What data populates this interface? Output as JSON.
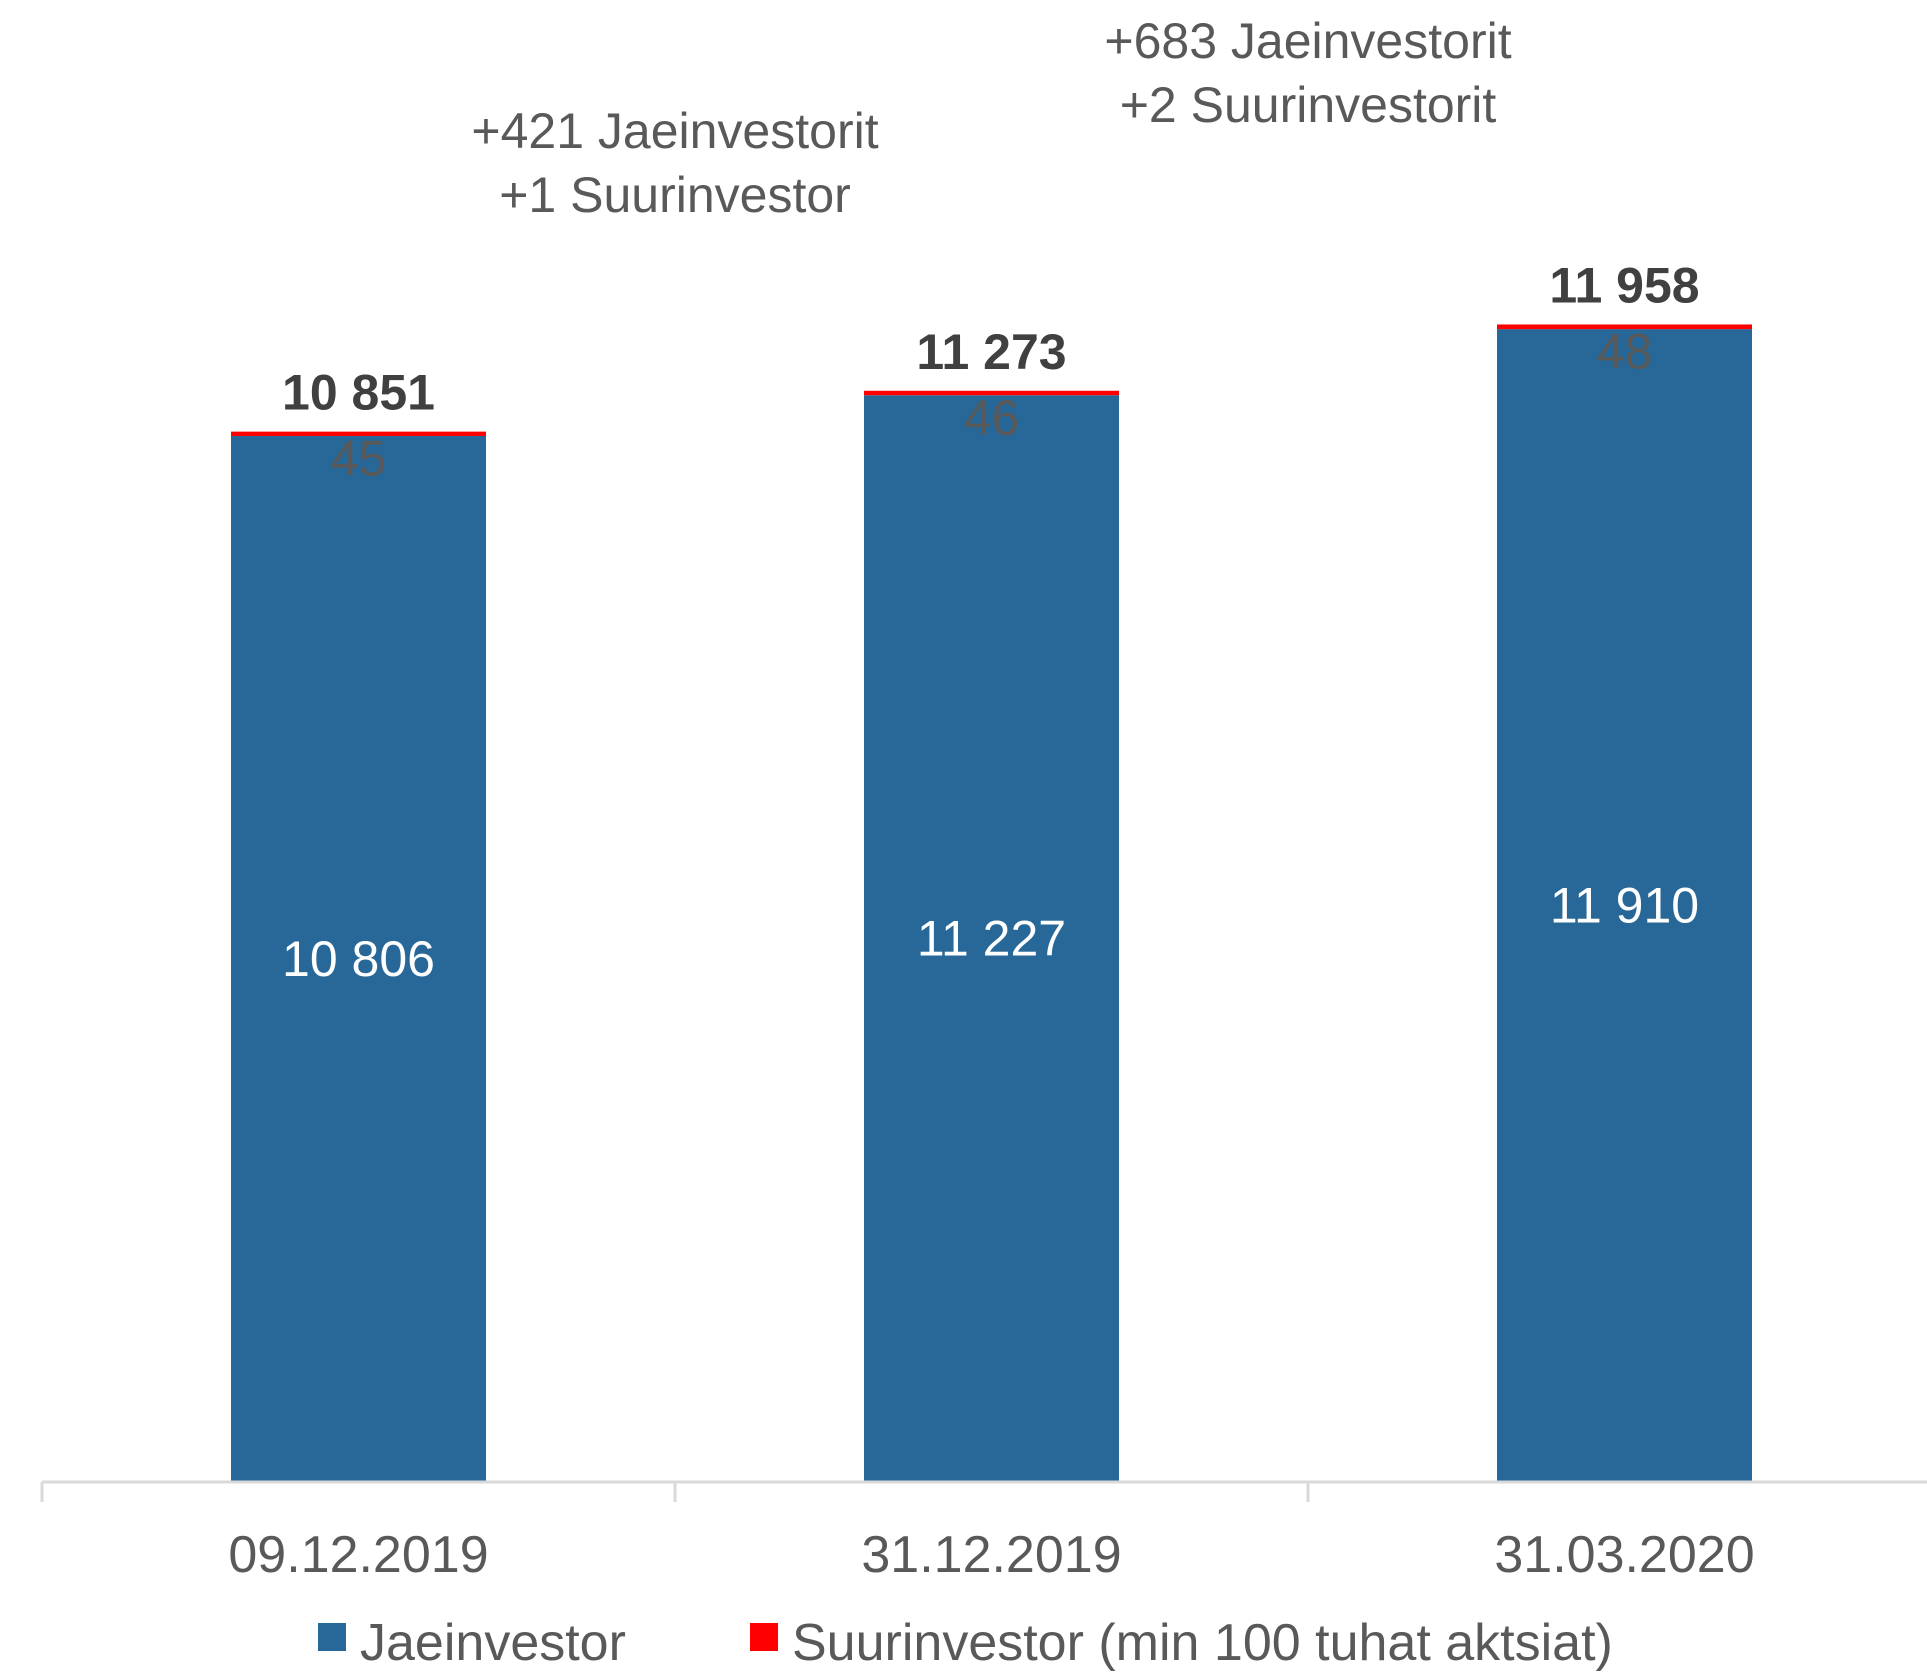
{
  "chart_data": {
    "type": "bar",
    "stacked": true,
    "title": "",
    "xlabel": "",
    "ylabel": "",
    "ylim": [
      0,
      12600
    ],
    "grid": false,
    "legend_position": "bottom",
    "categories": [
      "09.12.2019",
      "31.12.2019",
      "31.03.2020"
    ],
    "series": [
      {
        "name": "Jaeinvestor",
        "color": "#276898",
        "values": [
          10806,
          11227,
          11910
        ],
        "labels": [
          "10 806",
          "11 227",
          "11 910"
        ]
      },
      {
        "name": "Suurinvestor (min 100 tuhat aktsiat)",
        "color": "#ff0000",
        "values": [
          45,
          46,
          48
        ],
        "labels": [
          "45",
          "46",
          "48"
        ]
      }
    ],
    "totals": [
      10851,
      11273,
      11958
    ],
    "total_labels": [
      "10 851",
      "11 273",
      "11 958"
    ],
    "annotations": [
      {
        "between": [
          0,
          1
        ],
        "lines": [
          "+421 Jaeinvestorit",
          "+1 Suurinvestor"
        ]
      },
      {
        "between": [
          1,
          2
        ],
        "lines": [
          "+683 Jaeinvestorit",
          "+2 Suurinvestorit"
        ]
      }
    ]
  },
  "colors": {
    "text": "#595959",
    "total_text": "#404040",
    "axis": "#d9d9d9",
    "inner_label": "#ffffff"
  }
}
